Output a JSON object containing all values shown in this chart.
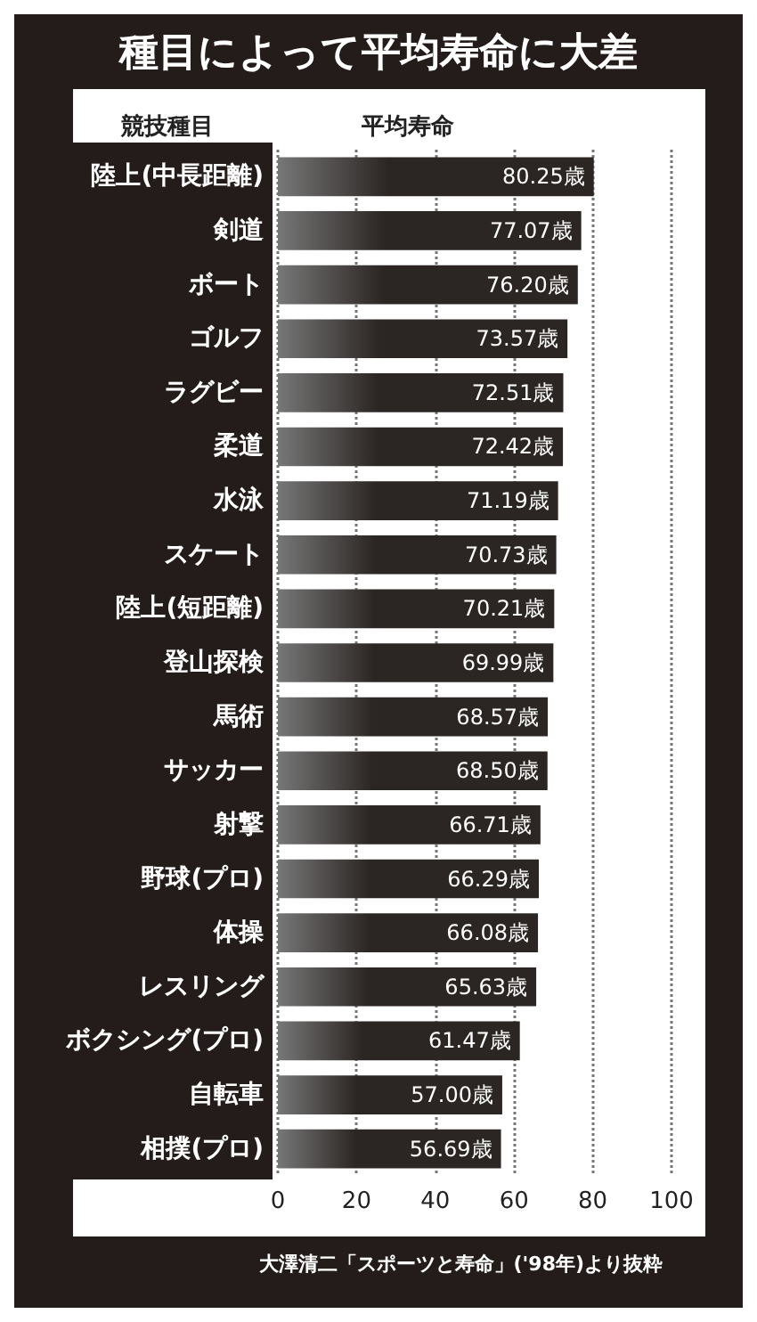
{
  "chart_data": {
    "type": "bar",
    "orientation": "horizontal",
    "title": "種目によって平均寿命に大差",
    "ylabel": "競技種目",
    "xlabel": "平均寿命",
    "categories": [
      "陸上(中長距離)",
      "剣道",
      "ボート",
      "ゴルフ",
      "ラグビー",
      "柔道",
      "水泳",
      "スケート",
      "陸上(短距離)",
      "登山探検",
      "馬術",
      "サッカー",
      "射撃",
      "野球(プロ)",
      "体操",
      "レスリング",
      "ボクシング(プロ)",
      "自転車",
      "相撲(プロ)"
    ],
    "values": [
      80.25,
      77.07,
      76.2,
      73.57,
      72.51,
      72.42,
      71.19,
      70.73,
      70.21,
      69.99,
      68.57,
      68.5,
      66.71,
      66.29,
      66.08,
      65.63,
      61.47,
      57.0,
      56.69
    ],
    "value_labels": [
      "80.25歳",
      "77.07歳",
      "76.20歳",
      "73.57歳",
      "72.51歳",
      "72.42歳",
      "71.19歳",
      "70.73歳",
      "70.21歳",
      "69.99歳",
      "68.57歳",
      "68.50歳",
      "66.71歳",
      "66.29歳",
      "66.08歳",
      "65.63歳",
      "61.47歳",
      "57.00歳",
      "56.69歳"
    ],
    "color": "#2b2624",
    "xlim": [
      0,
      100
    ],
    "xticks": [
      0,
      20,
      40,
      60,
      80,
      100
    ],
    "grid": "x",
    "annotations": [
      "大澤清二「スポーツと寿命」('98年)より抜粋"
    ]
  }
}
